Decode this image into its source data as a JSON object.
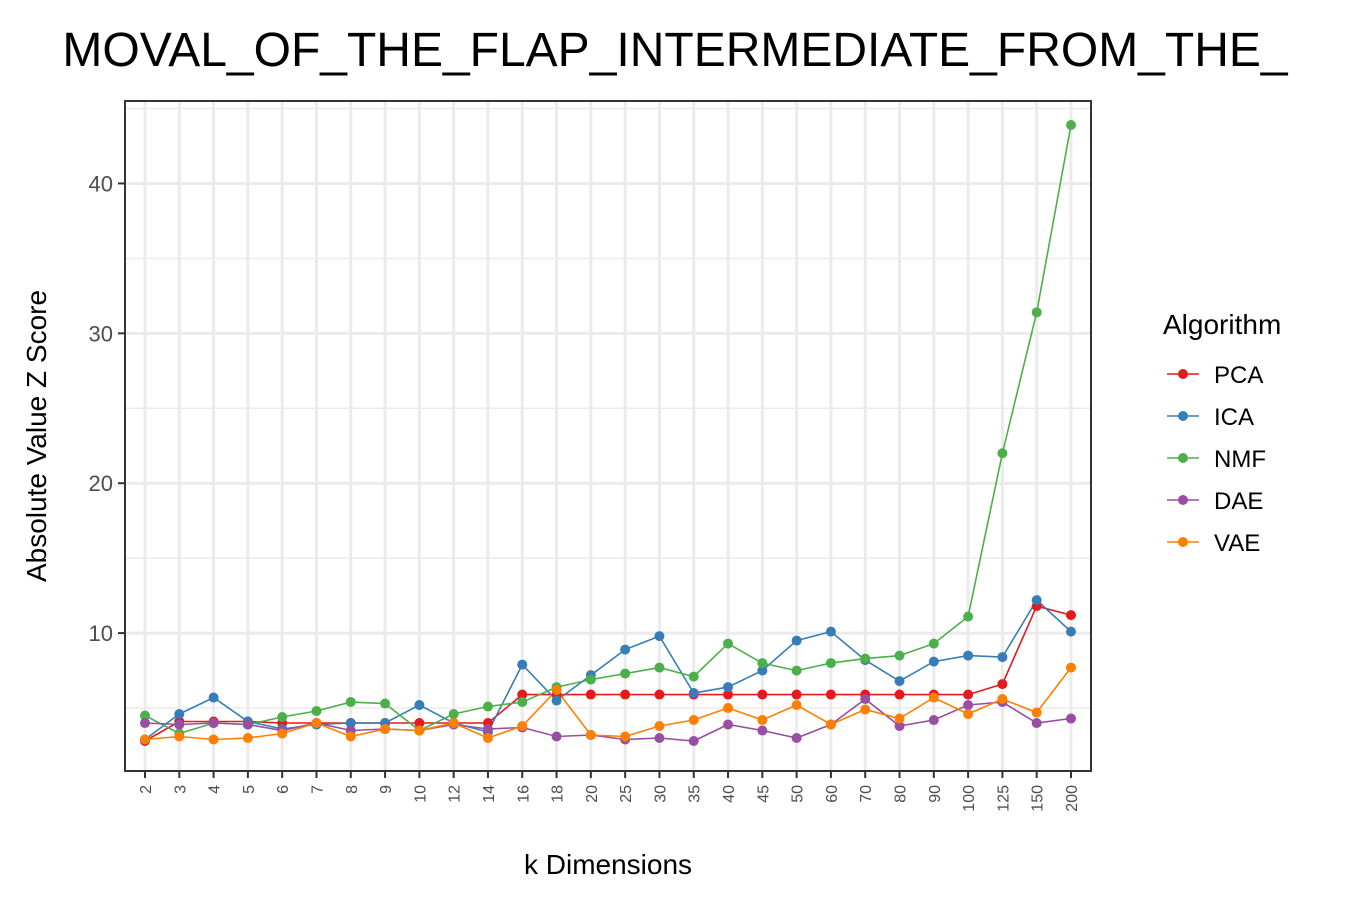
{
  "chart_data": {
    "type": "line",
    "title": "MOVAL_OF_THE_FLAP_INTERMEDIATE_FROM_THE_",
    "xlabel": "k Dimensions",
    "ylabel": "Absolute Value Z Score",
    "categories": [
      "2",
      "3",
      "4",
      "5",
      "6",
      "7",
      "8",
      "9",
      "10",
      "12",
      "14",
      "16",
      "18",
      "20",
      "25",
      "30",
      "35",
      "40",
      "45",
      "50",
      "60",
      "70",
      "80",
      "90",
      "100",
      "125",
      "150",
      "200"
    ],
    "yticks": [
      10,
      20,
      30,
      40
    ],
    "ylim": [
      0.8,
      45.5
    ],
    "grid": true,
    "legend": {
      "title": "Algorithm",
      "position": "right"
    },
    "series": [
      {
        "name": "PCA",
        "color": "#e41a1c",
        "values": [
          2.8,
          4.1,
          4.1,
          4.1,
          4.0,
          4.0,
          4.0,
          4.0,
          4.0,
          4.0,
          4.0,
          5.9,
          5.9,
          5.9,
          5.9,
          5.9,
          5.9,
          5.9,
          5.9,
          5.9,
          5.9,
          5.9,
          5.9,
          5.9,
          5.9,
          6.6,
          11.8,
          11.2
        ]
      },
      {
        "name": "ICA",
        "color": "#377eb8",
        "values": [
          2.9,
          4.6,
          5.7,
          4.1,
          3.6,
          3.9,
          4.0,
          4.0,
          5.2,
          4.0,
          3.4,
          7.9,
          5.5,
          7.2,
          8.9,
          9.8,
          6.0,
          6.4,
          7.5,
          9.5,
          10.1,
          8.2,
          6.8,
          8.1,
          8.5,
          8.4,
          12.2,
          10.1
        ]
      },
      {
        "name": "NMF",
        "color": "#4daf4a",
        "values": [
          4.5,
          3.3,
          4.0,
          3.9,
          4.4,
          4.8,
          5.4,
          5.3,
          3.5,
          4.6,
          5.1,
          5.4,
          6.4,
          6.9,
          7.3,
          7.7,
          7.1,
          9.3,
          8.0,
          7.5,
          8.0,
          8.3,
          8.5,
          9.3,
          11.1,
          22.0,
          31.4,
          43.9
        ]
      },
      {
        "name": "DAE",
        "color": "#984ea3",
        "values": [
          4.0,
          3.9,
          4.0,
          3.9,
          3.5,
          4.0,
          3.5,
          3.6,
          3.5,
          3.9,
          3.6,
          3.7,
          3.1,
          3.2,
          2.9,
          3.0,
          2.8,
          3.9,
          3.5,
          3.0,
          3.9,
          5.6,
          3.8,
          4.2,
          5.2,
          5.4,
          4.0,
          4.3
        ]
      },
      {
        "name": "VAE",
        "color": "#ff7f00",
        "values": [
          2.9,
          3.1,
          2.9,
          3.0,
          3.3,
          4.0,
          3.1,
          3.6,
          3.5,
          4.0,
          3.0,
          3.8,
          6.2,
          3.2,
          3.1,
          3.8,
          4.2,
          5.0,
          4.2,
          5.2,
          3.9,
          4.9,
          4.3,
          5.7,
          4.6,
          5.6,
          4.7,
          7.7
        ]
      }
    ]
  }
}
